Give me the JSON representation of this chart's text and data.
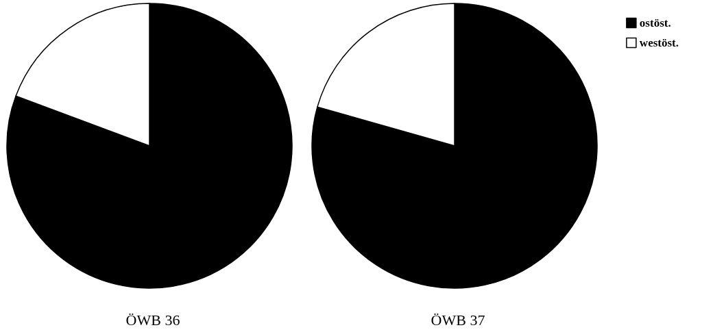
{
  "chart_data": {
    "type": "pie",
    "categories": [
      "ostöst.",
      "westöst."
    ],
    "colors": [
      "#000000",
      "#ffffff"
    ],
    "legend": "top right",
    "series": [
      {
        "name": "ÖWB 36",
        "values": [
          80.7,
          19.3
        ]
      },
      {
        "name": "ÖWB 37",
        "values": [
          79.4,
          20.6
        ]
      }
    ]
  }
}
